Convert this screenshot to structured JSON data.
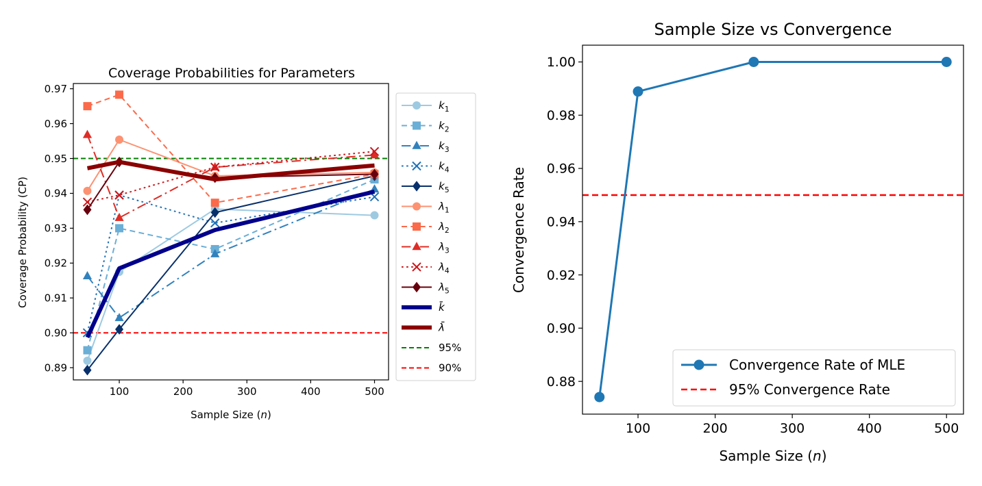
{
  "chart_data": [
    {
      "type": "line",
      "title": "Coverage Probabilities for Parameters",
      "xlabel": "Sample Size (n)",
      "ylabel": "Coverage Probability (CP)",
      "xlim": [
        28,
        522
      ],
      "ylim": [
        0.8865,
        0.9715
      ],
      "xticks": [
        100,
        200,
        300,
        400,
        500
      ],
      "yticks": [
        0.89,
        0.9,
        0.91,
        0.92,
        0.93,
        0.94,
        0.95,
        0.96,
        0.97
      ],
      "ytick_labels": [
        "0.89",
        "0.90",
        "0.91",
        "0.92",
        "0.93",
        "0.94",
        "0.95",
        "0.96",
        "0.97"
      ],
      "x": [
        50,
        100,
        250,
        500
      ],
      "legend_position": "outside-right",
      "grid": false,
      "series": [
        {
          "name": "k1",
          "base": "k",
          "sub": "1",
          "values": [
            0.892,
            0.9175,
            0.9355,
            0.9337
          ],
          "color": "#9ecae1",
          "dash": "solid",
          "marker": "circle",
          "width": 2
        },
        {
          "name": "k2",
          "base": "k",
          "sub": "2",
          "values": [
            0.895,
            0.93,
            0.924,
            0.944
          ],
          "color": "#6baed6",
          "dash": "dashed",
          "marker": "square",
          "width": 2
        },
        {
          "name": "k3",
          "base": "k",
          "sub": "3",
          "values": [
            0.9163,
            0.9043,
            0.9226,
            0.9412
          ],
          "color": "#3182bd",
          "dash": "dashdot",
          "marker": "triangle",
          "width": 2
        },
        {
          "name": "k4",
          "base": "k",
          "sub": "4",
          "values": [
            0.9,
            0.9395,
            0.9315,
            0.939
          ],
          "color": "#2171b5",
          "dash": "dotted",
          "marker": "x",
          "width": 2
        },
        {
          "name": "k5",
          "base": "k",
          "sub": "5",
          "values": [
            0.8893,
            0.901,
            0.9345,
            0.945
          ],
          "color": "#08306b",
          "dash": "solid",
          "marker": "diamond",
          "width": 2
        },
        {
          "name": "λ1",
          "base": "λ",
          "sub": "1",
          "values": [
            0.9407,
            0.9554,
            0.945,
            0.946
          ],
          "color": "#fc9272",
          "dash": "solid",
          "marker": "circle",
          "width": 2
        },
        {
          "name": "λ2",
          "base": "λ",
          "sub": "2",
          "values": [
            0.965,
            0.9683,
            0.9373,
            0.9455
          ],
          "color": "#fb6a4a",
          "dash": "dashed",
          "marker": "square",
          "width": 2
        },
        {
          "name": "λ3",
          "base": "λ",
          "sub": "3",
          "values": [
            0.9568,
            0.933,
            0.9475,
            0.951
          ],
          "color": "#de2d26",
          "dash": "dashdot",
          "marker": "triangle",
          "width": 2
        },
        {
          "name": "λ4",
          "base": "λ",
          "sub": "4",
          "values": [
            0.9375,
            0.9395,
            0.9475,
            0.952
          ],
          "color": "#cb181d",
          "dash": "dotted",
          "marker": "x",
          "width": 2
        },
        {
          "name": "λ5",
          "base": "λ",
          "sub": "5",
          "values": [
            0.9353,
            0.949,
            0.9445,
            0.9455
          ],
          "color": "#67000d",
          "dash": "solid",
          "marker": "diamond",
          "width": 2
        },
        {
          "name": "k̄",
          "base": "k",
          "sub": "",
          "bar": true,
          "values": [
            0.8987,
            0.9185,
            0.9295,
            0.9405
          ],
          "color": "#00008b",
          "dash": "solid",
          "marker": "none",
          "width": 6
        },
        {
          "name": "λ̄",
          "base": "λ",
          "sub": "",
          "bar": true,
          "values": [
            0.9472,
            0.949,
            0.944,
            0.948
          ],
          "color": "#8b0000",
          "dash": "solid",
          "marker": "none",
          "width": 6
        }
      ],
      "reference_lines": [
        {
          "name": "95%",
          "y": 0.95,
          "color": "#008000",
          "dash": "dashed"
        },
        {
          "name": "90%",
          "y": 0.9,
          "color": "#ff0000",
          "dash": "dashed"
        }
      ]
    },
    {
      "type": "line",
      "title": "Sample Size vs Convergence",
      "xlabel": "Sample Size (n)",
      "ylabel": "Convergence Rate",
      "xlim": [
        28,
        522
      ],
      "ylim": [
        0.8677,
        1.0063
      ],
      "xticks": [
        100,
        200,
        300,
        400,
        500
      ],
      "yticks": [
        0.88,
        0.9,
        0.92,
        0.94,
        0.96,
        0.98,
        1.0
      ],
      "ytick_labels": [
        "0.88",
        "0.90",
        "0.92",
        "0.94",
        "0.96",
        "0.98",
        "1.00"
      ],
      "grid": false,
      "legend_position": "lower-right",
      "series": [
        {
          "name": "Convergence Rate of MLE",
          "x": [
            50,
            100,
            250,
            500
          ],
          "values": [
            0.8741,
            0.9889,
            1.0,
            1.0
          ],
          "color": "#1f77b4",
          "dash": "solid",
          "marker": "circle"
        }
      ],
      "reference_lines": [
        {
          "name": "95% Convergence Rate",
          "y": 0.95,
          "color": "#ff0000",
          "dash": "dashed"
        }
      ]
    }
  ]
}
